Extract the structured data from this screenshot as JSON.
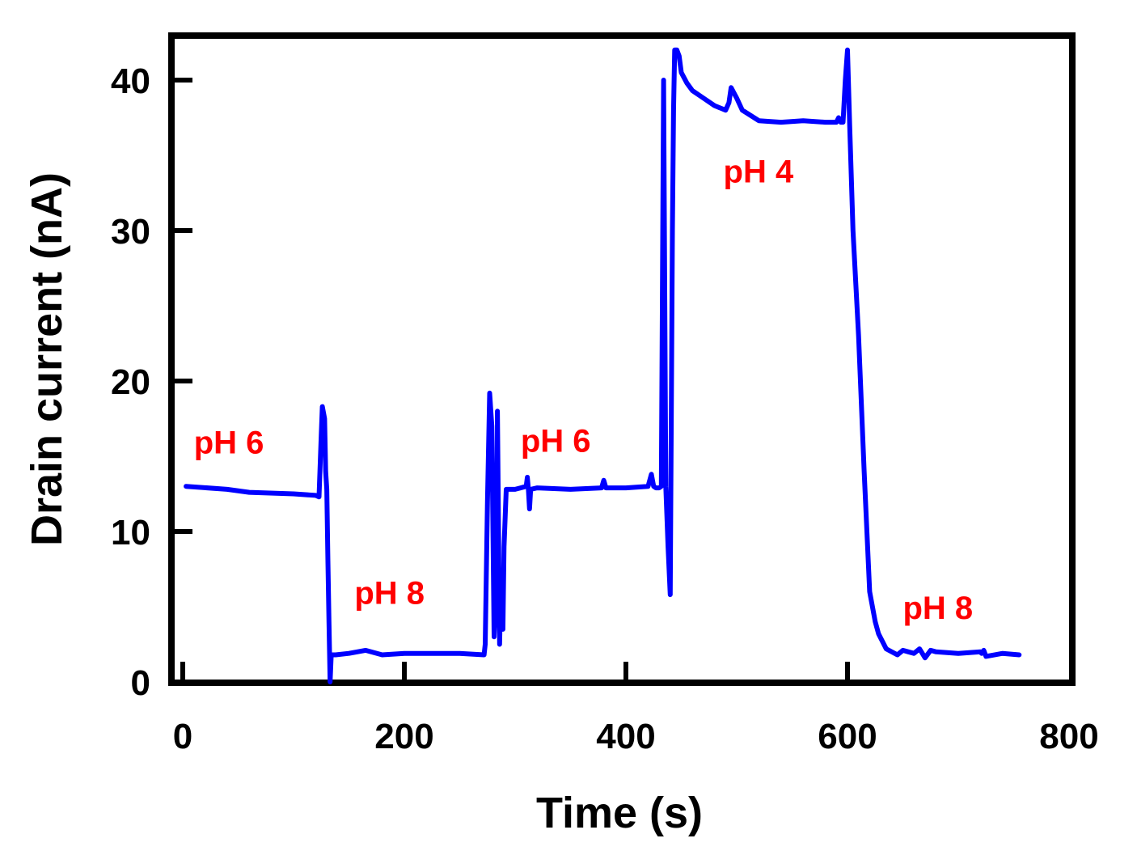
{
  "chart_data": {
    "type": "line",
    "title": "",
    "xlabel": "Time (s)",
    "ylabel": "Drain current (nA)",
    "xlim": [
      0,
      800
    ],
    "ylim": [
      0,
      43
    ],
    "xticks": [
      0,
      200,
      400,
      600,
      800
    ],
    "yticks": [
      0,
      10,
      20,
      30,
      40
    ],
    "xtick_labels": [
      "0",
      "200",
      "400",
      "600",
      "800"
    ],
    "ytick_labels": [
      "0",
      "10",
      "20",
      "30",
      "40"
    ],
    "grid": false,
    "legend": "none",
    "series": [
      {
        "name": "Drain current",
        "color": "#0000ff",
        "x": [
          3,
          40,
          60,
          100,
          120,
          123,
          125,
          126,
          128,
          129,
          130,
          131,
          132,
          133,
          134,
          138,
          150,
          165,
          180,
          200,
          230,
          250,
          272,
          273,
          275,
          277,
          279,
          281,
          283,
          284,
          285,
          286,
          287,
          289,
          290,
          292,
          295,
          300,
          305,
          310,
          311,
          312,
          313,
          314,
          320,
          350,
          378,
          380,
          382,
          385,
          400,
          420,
          423,
          425,
          427,
          430,
          432,
          434,
          436,
          438,
          440,
          442,
          443,
          444,
          446,
          448,
          450,
          455,
          460,
          470,
          480,
          490,
          493,
          495,
          500,
          505,
          520,
          540,
          560,
          580,
          590,
          592,
          594,
          596,
          598,
          600,
          602,
          605,
          610,
          615,
          620,
          625,
          628,
          635,
          645,
          650,
          655,
          660,
          665,
          670,
          675,
          680,
          700,
          720,
          721,
          723,
          725,
          740,
          755
        ],
        "y": [
          13.0,
          12.8,
          12.6,
          12.5,
          12.4,
          12.3,
          16.5,
          18.3,
          17.5,
          14.0,
          12.8,
          8.0,
          4.0,
          0.0,
          1.8,
          1.8,
          1.9,
          2.1,
          1.8,
          1.9,
          1.9,
          1.9,
          1.8,
          2.5,
          12.0,
          19.2,
          17.0,
          3.0,
          6.0,
          18.0,
          10.0,
          2.5,
          6.0,
          3.5,
          9.0,
          12.8,
          12.8,
          12.8,
          12.9,
          13.0,
          13.6,
          12.8,
          11.5,
          12.8,
          12.9,
          12.8,
          12.9,
          13.4,
          12.9,
          12.9,
          12.9,
          13.0,
          13.8,
          13.0,
          12.9,
          12.9,
          13.0,
          40.0,
          13.0,
          9.0,
          5.8,
          30.0,
          38.0,
          42.0,
          42.0,
          41.6,
          40.5,
          39.8,
          39.3,
          38.8,
          38.3,
          38.0,
          38.5,
          39.5,
          38.8,
          38.0,
          37.3,
          37.2,
          37.3,
          37.2,
          37.2,
          37.5,
          37.2,
          37.2,
          40.0,
          42.0,
          37.0,
          30.0,
          23.0,
          14.0,
          6.0,
          4.0,
          3.2,
          2.2,
          1.8,
          2.1,
          2.0,
          1.9,
          2.2,
          1.6,
          2.1,
          2.0,
          1.9,
          2.0,
          1.9,
          2.1,
          1.7,
          1.9,
          1.8
        ]
      }
    ],
    "annotations": [
      {
        "text": "pH 6",
        "x": 10,
        "y": 15.2,
        "color": "#ff0000"
      },
      {
        "text": "pH 8",
        "x": 155,
        "y": 5.2,
        "color": "#ff0000"
      },
      {
        "text": "pH 6",
        "x": 305,
        "y": 15.3,
        "color": "#ff0000"
      },
      {
        "text": "pH 4",
        "x": 488,
        "y": 33.2,
        "color": "#ff0000"
      },
      {
        "text": "pH 8",
        "x": 650,
        "y": 4.2,
        "color": "#ff0000"
      }
    ]
  }
}
